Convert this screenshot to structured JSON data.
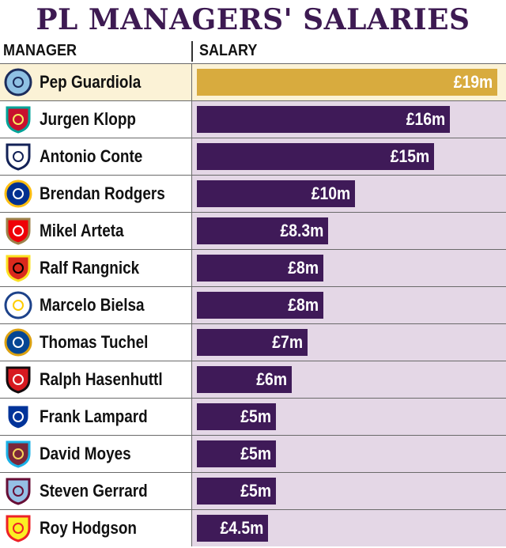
{
  "title": "PL MANAGERS' SALARIES",
  "columns": {
    "manager": "MANAGER",
    "salary": "SALARY"
  },
  "colors": {
    "title": "#3d1a52",
    "bar": "#3f1a58",
    "highlight_bar": "#d8ab3e",
    "row_bg": "#e4d7e6",
    "highlight_bg": "#fbf2d6"
  },
  "chart_data": {
    "type": "bar",
    "orientation": "horizontal",
    "title": "PL MANAGERS' SALARIES",
    "unit": "£m",
    "categories": [
      "Pep Guardiola",
      "Jurgen Klopp",
      "Antonio Conte",
      "Brendan Rodgers",
      "Mikel Arteta",
      "Ralf Rangnick",
      "Marcelo Bielsa",
      "Thomas Tuchel",
      "Ralph Hasenhuttl",
      "Frank Lampard",
      "David Moyes",
      "Steven Gerrard",
      "Roy Hodgson"
    ],
    "values": [
      19,
      16,
      15,
      10,
      8.3,
      8,
      8,
      7,
      6,
      5,
      5,
      5,
      4.5
    ],
    "labels": [
      "£19m",
      "£16m",
      "£15m",
      "£10m",
      "£8.3m",
      "£8m",
      "£8m",
      "£7m",
      "£6m",
      "£5m",
      "£5m",
      "£5m",
      "£4.5m"
    ],
    "highlighted": "Pep Guardiola",
    "xlim": [
      0,
      19
    ]
  },
  "badges": [
    {
      "icon": "manchester-city-badge-icon",
      "fill": "#8fc1e4",
      "ring": "#1c2c5b",
      "text": "#1c2c5b",
      "shape": "circle"
    },
    {
      "icon": "liverpool-badge-icon",
      "fill": "#c8102e",
      "ring": "#00a398",
      "text": "#f6eb61",
      "shape": "shield"
    },
    {
      "icon": "tottenham-badge-icon",
      "fill": "#ffffff",
      "ring": "#132257",
      "text": "#132257",
      "shape": "shield"
    },
    {
      "icon": "leicester-badge-icon",
      "fill": "#003090",
      "ring": "#fdbe11",
      "text": "#ffffff",
      "shape": "circle"
    },
    {
      "icon": "arsenal-badge-icon",
      "fill": "#ef0107",
      "ring": "#9c824a",
      "text": "#ffffff",
      "shape": "shield"
    },
    {
      "icon": "manchester-united-badge-icon",
      "fill": "#da291c",
      "ring": "#fbe122",
      "text": "#000000",
      "shape": "shield"
    },
    {
      "icon": "leeds-badge-icon",
      "fill": "#ffffff",
      "ring": "#1d428a",
      "text": "#ffcd00",
      "shape": "circle"
    },
    {
      "icon": "chelsea-badge-icon",
      "fill": "#034694",
      "ring": "#dba111",
      "text": "#ffffff",
      "shape": "circle"
    },
    {
      "icon": "southampton-badge-icon",
      "fill": "#d71920",
      "ring": "#130c0e",
      "text": "#ffffff",
      "shape": "shield"
    },
    {
      "icon": "everton-badge-icon",
      "fill": "#003399",
      "ring": "#ffffff",
      "text": "#ffffff",
      "shape": "shield"
    },
    {
      "icon": "west-ham-badge-icon",
      "fill": "#7a263a",
      "ring": "#1bb1e7",
      "text": "#f3d459",
      "shape": "shield"
    },
    {
      "icon": "aston-villa-badge-icon",
      "fill": "#95bfe5",
      "ring": "#670e36",
      "text": "#670e36",
      "shape": "shield"
    },
    {
      "icon": "watford-badge-icon",
      "fill": "#fbee23",
      "ring": "#ed2127",
      "text": "#ed2127",
      "shape": "shield"
    }
  ]
}
